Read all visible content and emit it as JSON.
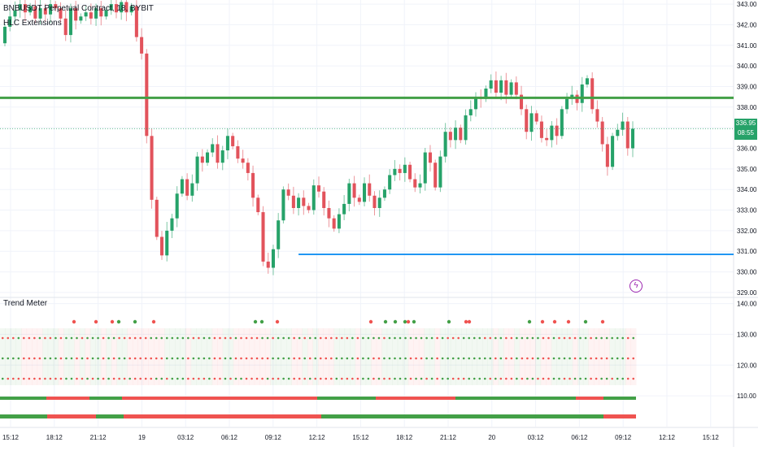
{
  "header": {
    "symbol_line": "BNBUSDT Perpetual Contract, 18, BYBIT",
    "indicator": "HLC Extensions",
    "lower_pane": "Trend Meter",
    "last_price": "336.95",
    "countdown": "08:55",
    "bolt_icon": "lightning-icon"
  },
  "colors": {
    "up": "#26a269",
    "down": "#e2535c",
    "level_high": "#43a047",
    "level_low": "#2196f3",
    "meter_green": "#43a047",
    "meter_red": "#ef5350"
  },
  "chart_data": [
    {
      "type": "candlestick",
      "title": "BNBUSDT Perpetual Contract, 18, BYBIT",
      "x_ticks": [
        "15:12",
        "18:12",
        "21:12",
        "19",
        "03:12",
        "06:12",
        "09:12",
        "12:12",
        "15:12",
        "18:12",
        "21:12",
        "20",
        "03:12",
        "06:12",
        "09:12",
        "12:12",
        "15:12"
      ],
      "y_ticks": [
        343.0,
        342.0,
        341.0,
        340.0,
        339.0,
        338.0,
        337.0,
        336.0,
        335.0,
        334.0,
        333.0,
        332.0,
        331.0,
        330.0,
        329.0
      ],
      "ylim": [
        328.8,
        343.2
      ],
      "horizontal_levels": [
        {
          "name": "high-extension",
          "price": 338.45,
          "color": "#43a047"
        },
        {
          "name": "low-extension",
          "price": 330.85,
          "color": "#2196f3"
        }
      ],
      "last_price": 336.95,
      "closes": [
        341.9,
        342.4,
        342.7,
        343.0,
        342.6,
        342.9,
        342.3,
        342.8,
        342.5,
        343.0,
        342.8,
        342.3,
        341.5,
        342.8,
        342.2,
        342.4,
        342.6,
        342.3,
        342.8,
        342.4,
        342.7,
        343.0,
        342.6,
        343.1,
        342.6,
        342.9,
        341.4,
        340.6,
        336.6,
        333.5,
        331.7,
        330.8,
        332.0,
        332.6,
        333.8,
        334.5,
        333.7,
        334.3,
        335.6,
        335.3,
        335.8,
        336.2,
        335.3,
        335.9,
        336.6,
        336.1,
        335.5,
        335.3,
        334.8,
        333.6,
        332.9,
        330.5,
        330.2,
        331.1,
        332.5,
        334.0,
        333.7,
        333.1,
        333.6,
        333.2,
        333.0,
        334.2,
        333.9,
        333.1,
        332.6,
        332.1,
        332.8,
        333.3,
        334.3,
        333.6,
        333.4,
        334.3,
        333.7,
        333.1,
        333.6,
        334.0,
        334.7,
        335.0,
        334.8,
        335.2,
        334.5,
        334.1,
        334.3,
        335.8,
        335.3,
        334.1,
        335.6,
        336.8,
        336.4,
        337.0,
        336.4,
        337.6,
        337.9,
        338.5,
        338.4,
        338.9,
        339.3,
        338.7,
        339.3,
        338.6,
        339.2,
        338.6,
        337.9,
        336.8,
        337.7,
        337.3,
        336.5,
        336.4,
        337.1,
        336.6,
        337.9,
        338.4,
        338.6,
        338.2,
        339.1,
        339.4,
        337.9,
        337.3,
        336.2,
        335.1,
        336.6,
        336.9,
        337.3,
        336.0,
        336.95
      ]
    },
    {
      "type": "table",
      "title": "Trend Meter",
      "y_ticks": [
        140.0,
        130.0,
        120.0,
        110.0
      ],
      "ylim": [
        100,
        142
      ]
    }
  ]
}
